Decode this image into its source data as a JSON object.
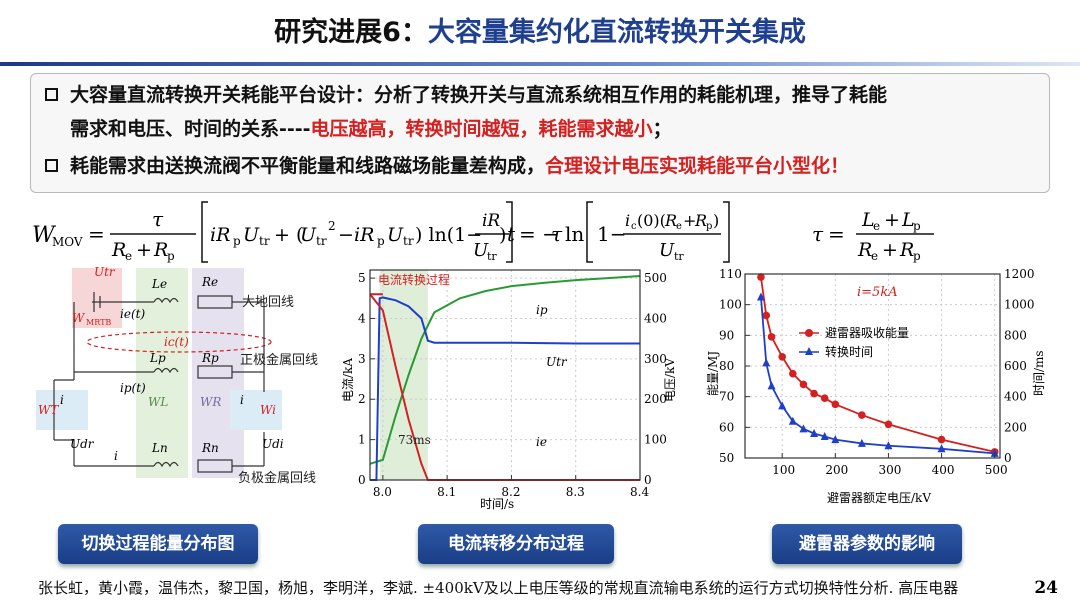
{
  "title": {
    "prefix": "研究进展6：",
    "main": "大容量集约化直流转换开关集成"
  },
  "bullets": {
    "b1_line1": "大容量直流转换开关耗能平台设计：分析了转换开关与直流系统相互作用的耗能机理，推导了耗能",
    "b1_line2_black": "需求和电压、时间的关系----",
    "b1_line2_red": "电压越高，转换时间越短，耗能需求越小",
    "b1_line2_end": "；",
    "b2_black": "耗能需求由送换流阀不平衡能量和线路磁场能量差构成，",
    "b2_red": "合理设计电压实现耗能平台小型化！"
  },
  "circuit": {
    "labels": {
      "utr": "Utr",
      "wmrtb": "W",
      "wmrtb_sub": "MRTB",
      "ie_t": "ie(t)",
      "ic_t": "ic(t)",
      "ip_t": "ip(t)",
      "le": "Le",
      "re": "Re",
      "lp": "Lp",
      "rp": "Rp",
      "ln": "Ln",
      "rn": "Rn",
      "wl": "WL",
      "wr": "WR",
      "wt": "WT",
      "wi": "Wi",
      "i_left": "i",
      "i_right": "i",
      "i_bottom": "i",
      "udr": "Udr",
      "udi": "Udi",
      "earth": "大地回线",
      "pos": "正极金属回线",
      "neg": "负极金属回线"
    },
    "caption": "切换过程能量分布图"
  },
  "chart1": {
    "caption": "电流转移分布过程",
    "annotation": "电流转换过程",
    "duration": "73ms",
    "series_labels": {
      "ip": "ip",
      "utr": "Utr",
      "ie": "ie"
    },
    "xlabel": "时间/s",
    "ylabel_left": "电流/kA",
    "ylabel_right": "电压/kV"
  },
  "chart2": {
    "caption": "避雷器参数的影响",
    "annotation": "i=5kA",
    "legend1": "避雷器吸收能量",
    "legend2": "转换时间",
    "xlabel": "避雷器额定电压/kV",
    "ylabel_left": "能量/MJ",
    "ylabel_right": "时间/ms"
  },
  "chart_data": [
    {
      "type": "line",
      "x_ticks": [
        "8.0",
        "8.1",
        "8.2",
        "8.3",
        "8.4"
      ],
      "y_left_ticks": [
        "0",
        "1",
        "2",
        "3",
        "4",
        "5"
      ],
      "y_right_ticks": [
        "0",
        "100",
        "200",
        "300",
        "400",
        "500"
      ],
      "xlim": [
        7.98,
        8.4
      ],
      "ylim": [
        0,
        5.2
      ],
      "y2lim": [
        0,
        520
      ],
      "series": [
        {
          "name": "ip",
          "axis": "left",
          "x": [
            7.98,
            8.0,
            8.02,
            8.04,
            8.06,
            8.08,
            8.12,
            8.16,
            8.2,
            8.25,
            8.3,
            8.35,
            8.4
          ],
          "y": [
            0.4,
            0.5,
            1.6,
            2.6,
            3.5,
            4.15,
            4.5,
            4.68,
            4.8,
            4.88,
            4.95,
            5.0,
            5.05
          ]
        },
        {
          "name": "Utr",
          "axis": "right",
          "x": [
            7.98,
            7.99,
            7.995,
            8.0,
            8.02,
            8.04,
            8.06,
            8.07,
            8.08,
            8.1,
            8.2,
            8.3,
            8.4
          ],
          "y": [
            0,
            0,
            450,
            452,
            445,
            430,
            400,
            345,
            340,
            340,
            340,
            338,
            338
          ]
        },
        {
          "name": "ie",
          "axis": "left",
          "x": [
            7.98,
            8.0,
            8.02,
            8.04,
            8.06,
            8.07,
            8.1,
            8.2,
            8.3,
            8.4
          ],
          "y": [
            4.6,
            4.2,
            2.8,
            1.5,
            0.4,
            0.0,
            0.0,
            0.0,
            0.0,
            0.0
          ]
        },
        {
          "name": "",
          "axis": "left",
          "x": [
            7.98,
            8.0
          ],
          "y": [
            4.6,
            4.6
          ]
        }
      ]
    },
    {
      "type": "line",
      "x_ticks": [
        "100",
        "200",
        "300",
        "400",
        "500"
      ],
      "y_left_ticks": [
        "50",
        "60",
        "70",
        "80",
        "90",
        "100",
        "110"
      ],
      "y_right_ticks": [
        "0",
        "200",
        "400",
        "600",
        "800",
        "1000",
        "1200"
      ],
      "xlim": [
        30,
        510
      ],
      "ylim": [
        50,
        110
      ],
      "y2lim": [
        0,
        1200
      ],
      "series": [
        {
          "name": "避雷器吸收能量",
          "axis": "left",
          "marker": "circle",
          "x": [
            60,
            70,
            80,
            100,
            120,
            140,
            160,
            180,
            200,
            250,
            300,
            400,
            500
          ],
          "y": [
            109,
            96.5,
            89.5,
            83,
            77.5,
            74,
            71,
            69.5,
            67.5,
            64,
            61,
            56,
            52
          ]
        },
        {
          "name": "转换时间",
          "axis": "right",
          "marker": "triangle",
          "x": [
            60,
            70,
            80,
            100,
            120,
            140,
            160,
            180,
            200,
            250,
            300,
            400,
            500
          ],
          "y": [
            1050,
            620,
            470,
            340,
            240,
            190,
            160,
            140,
            120,
            95,
            80,
            60,
            30
          ]
        }
      ]
    }
  ],
  "footer": "张长虹，黄小霞，温伟杰，黎卫国，杨旭，李明洋，李斌. ±400kV及以上电压等级的常规直流输电系统的运行方式切换特性分析. 高压电器",
  "page_number": "24",
  "colors": {
    "navy": "#1f3f8f",
    "red": "#d42020",
    "green": "#2a9a32",
    "blue": "#1f3fc8"
  }
}
